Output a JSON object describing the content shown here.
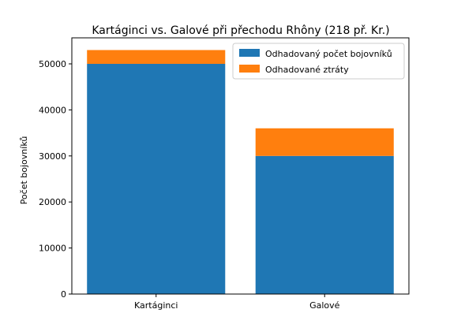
{
  "chart_data": {
    "type": "bar",
    "stacked": true,
    "title": "Kartáginci vs. Galové při přechodu Rhôny (218 př. Kr.)",
    "xlabel": "",
    "ylabel": "Počet bojovníků",
    "categories": [
      "Kartáginci",
      "Galové"
    ],
    "series": [
      {
        "name": "Odhadovaný počet bojovníků",
        "values": [
          50000,
          30000
        ],
        "color": "#1f77b4"
      },
      {
        "name": "Odhadované ztráty",
        "values": [
          3000,
          6000
        ],
        "color": "#ff7f0e"
      }
    ],
    "ylim": [
      0,
      55650
    ],
    "yticks": [
      0,
      10000,
      20000,
      30000,
      40000,
      50000
    ],
    "ytick_labels": [
      "0",
      "10000",
      "20000",
      "30000",
      "40000",
      "50000"
    ],
    "grid": false,
    "legend_position": "top-right"
  }
}
